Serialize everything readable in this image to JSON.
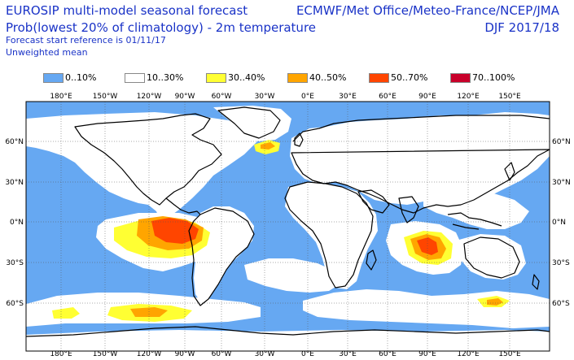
{
  "header": {
    "title": "EUROSIP multi-model seasonal forecast",
    "subtitle": "Prob(lowest 20% of climatology) - 2m temperature",
    "reference": "Forecast start reference is 01/11/17",
    "weighting": "Unweighted mean",
    "centres": "ECMWF/Met Office/Meteo-France/NCEP/JMA",
    "period": "DJF 2017/18"
  },
  "legend": [
    {
      "label": "0..10%",
      "color": "#66a8f2"
    },
    {
      "label": "10..30%",
      "color": "#ffffff"
    },
    {
      "label": "30..40%",
      "color": "#ffff33"
    },
    {
      "label": "40..50%",
      "color": "#ffa500"
    },
    {
      "label": "50..70%",
      "color": "#ff4500"
    },
    {
      "label": "70..100%",
      "color": "#c8002a"
    }
  ],
  "map": {
    "projection": "global lon/lat, centred on 30°W",
    "x_ticks": [
      "180°E",
      "150°W",
      "120°W",
      "90°W",
      "60°W",
      "30°W",
      "0°E",
      "30°E",
      "60°E",
      "90°E",
      "120°E",
      "150°E"
    ],
    "y_ticks_left": [
      "60°N",
      "30°N",
      "0°N",
      "30°S",
      "60°S"
    ],
    "y_ticks_right": [
      "60°N",
      "30°N",
      "0°N",
      "30°S",
      "60°S"
    ],
    "highlights": [
      {
        "region": "eastern equatorial Pacific",
        "max_category": "50..70%"
      },
      {
        "region": "eastern Indian Ocean / west of Australia",
        "max_category": "50..70%"
      },
      {
        "region": "Southern Ocean patches",
        "max_category": "40..50%"
      },
      {
        "region": "central North Atlantic",
        "max_category": "40..50%"
      }
    ]
  }
}
